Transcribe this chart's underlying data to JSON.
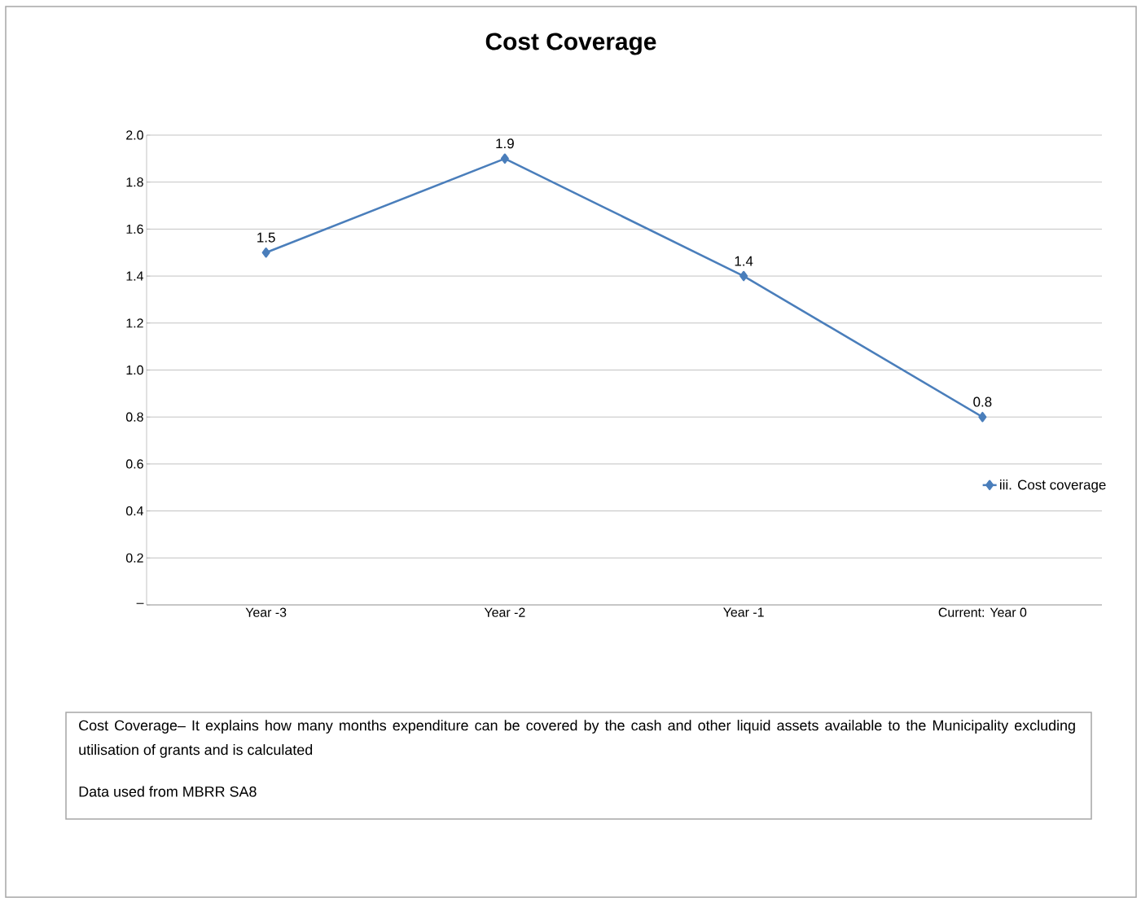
{
  "chart_data": {
    "type": "line",
    "title": "Cost Coverage",
    "categories": [
      "Year -3",
      "Year -2",
      "Year -1",
      "Current: Year 0"
    ],
    "series": [
      {
        "name": "iii. Cost coverage",
        "color": "#4a7ebb",
        "values": [
          1.5,
          1.9,
          1.4,
          0.8
        ]
      }
    ],
    "ylim": [
      0,
      2
    ],
    "yticks": [
      {
        "value": 0,
        "label": "–"
      },
      {
        "value": 0.2,
        "label": "0.2"
      },
      {
        "value": 0.4,
        "label": "0.4"
      },
      {
        "value": 0.6,
        "label": "0.6"
      },
      {
        "value": 0.8,
        "label": "0.8"
      },
      {
        "value": 1.0,
        "label": "1.0"
      },
      {
        "value": 1.2,
        "label": "1.2"
      },
      {
        "value": 1.4,
        "label": "1.4"
      },
      {
        "value": 1.6,
        "label": "1.6"
      },
      {
        "value": 1.8,
        "label": "1.8"
      },
      {
        "value": 2.0,
        "label": "2.0"
      }
    ],
    "grid": "y",
    "legend": "right",
    "marker": "diamond",
    "line_style": "solid",
    "data_labels": true,
    "annotations": [
      "Cost Coverage– It explains how many months expenditure can be covered by the cash and other liquid assets available to the Municipality excluding utilisation of grants and is calculated",
      "Data used from MBRR SA8"
    ]
  }
}
